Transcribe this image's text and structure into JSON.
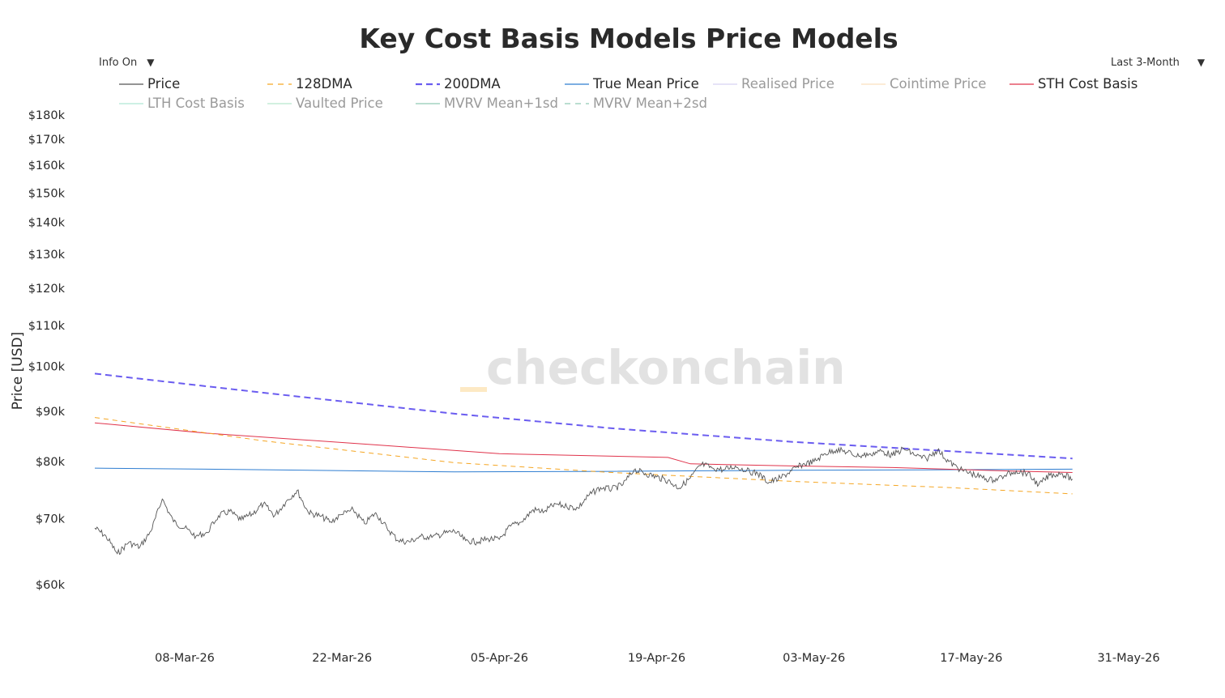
{
  "title": "Key Cost Basis Models Price Models",
  "info_dropdown": {
    "label": "Info On"
  },
  "range_dropdown": {
    "label": "Last 3-Month"
  },
  "watermark": "checkonchain",
  "legend": [
    {
      "name": "Price",
      "color": "#555555",
      "dash": "solid",
      "visible": true
    },
    {
      "name": "128DMA",
      "color": "#f5a623",
      "dash": "dash",
      "visible": true
    },
    {
      "name": "200DMA",
      "color": "#6a5cf0",
      "dash": "dash-thick",
      "visible": true
    },
    {
      "name": "True Mean Price",
      "color": "#2e7dd1",
      "dash": "solid",
      "visible": true
    },
    {
      "name": "Realised Price",
      "color": "#b9aee8",
      "dash": "solid",
      "visible": false
    },
    {
      "name": "Cointime Price",
      "color": "#f7c98a",
      "dash": "solid",
      "visible": false
    },
    {
      "name": "STH Cost Basis",
      "color": "#e0334b",
      "dash": "solid",
      "visible": true
    },
    {
      "name": "LTH Cost Basis",
      "color": "#6fd6b0",
      "dash": "solid",
      "visible": false
    },
    {
      "name": "Vaulted Price",
      "color": "#7fd3a6",
      "dash": "solid",
      "visible": false
    },
    {
      "name": "MVRV Mean+1sd",
      "color": "#3aa07a",
      "dash": "solid",
      "visible": false
    },
    {
      "name": "MVRV Mean+2sd",
      "color": "#3aa07a",
      "dash": "dash",
      "visible": false
    }
  ],
  "chart_data": {
    "type": "line",
    "title": "Key Cost Basis Models Price Models",
    "xlabel": "",
    "ylabel": "Price [USD]",
    "yscale": "log",
    "x_range": [
      "2026-02-26",
      "2026-06-03"
    ],
    "y_range": [
      55000,
      185000
    ],
    "y_ticks": [
      60000,
      70000,
      80000,
      90000,
      100000,
      110000,
      120000,
      130000,
      140000,
      150000,
      160000,
      170000,
      180000
    ],
    "y_tick_labels": [
      "$60k",
      "$70k",
      "$80k",
      "$90k",
      "$100k",
      "$110k",
      "$120k",
      "$130k",
      "$140k",
      "$150k",
      "$160k",
      "$170k",
      "$180k"
    ],
    "x_ticks": [
      "2026-03-08",
      "2026-03-22",
      "2026-04-05",
      "2026-04-19",
      "2026-05-03",
      "2026-05-17",
      "2026-05-31"
    ],
    "x_tick_labels": [
      "08-Mar-26",
      "22-Mar-26",
      "05-Apr-26",
      "19-Apr-26",
      "03-May-26",
      "17-May-26",
      "31-May-26"
    ],
    "grid": false,
    "legend_position": "top",
    "series": [
      {
        "name": "Price",
        "points": [
          [
            "2026-02-28",
            68500
          ],
          [
            "2026-03-01",
            67200
          ],
          [
            "2026-03-02",
            64500
          ],
          [
            "2026-03-03",
            66200
          ],
          [
            "2026-03-04",
            65500
          ],
          [
            "2026-03-05",
            68000
          ],
          [
            "2026-03-06",
            73300
          ],
          [
            "2026-03-07",
            69500
          ],
          [
            "2026-03-08",
            68500
          ],
          [
            "2026-03-09",
            67200
          ],
          [
            "2026-03-10",
            67800
          ],
          [
            "2026-03-11",
            70500
          ],
          [
            "2026-03-12",
            71200
          ],
          [
            "2026-03-13",
            69800
          ],
          [
            "2026-03-14",
            70800
          ],
          [
            "2026-03-15",
            72500
          ],
          [
            "2026-03-16",
            70500
          ],
          [
            "2026-03-17",
            72800
          ],
          [
            "2026-03-18",
            74800
          ],
          [
            "2026-03-19",
            71000
          ],
          [
            "2026-03-20",
            70500
          ],
          [
            "2026-03-21",
            69500
          ],
          [
            "2026-03-22",
            70700
          ],
          [
            "2026-03-23",
            71500
          ],
          [
            "2026-03-24",
            69200
          ],
          [
            "2026-03-25",
            71000
          ],
          [
            "2026-03-26",
            68500
          ],
          [
            "2026-03-27",
            66500
          ],
          [
            "2026-03-28",
            66300
          ],
          [
            "2026-03-29",
            67200
          ],
          [
            "2026-03-30",
            67000
          ],
          [
            "2026-03-31",
            67600
          ],
          [
            "2026-04-01",
            68000
          ],
          [
            "2026-04-02",
            66500
          ],
          [
            "2026-04-03",
            66300
          ],
          [
            "2026-04-04",
            66800
          ],
          [
            "2026-04-05",
            66700
          ],
          [
            "2026-04-06",
            68800
          ],
          [
            "2026-04-07",
            69500
          ],
          [
            "2026-04-08",
            71500
          ],
          [
            "2026-04-09",
            71200
          ],
          [
            "2026-04-10",
            72500
          ],
          [
            "2026-04-11",
            72000
          ],
          [
            "2026-04-12",
            71800
          ],
          [
            "2026-04-13",
            74000
          ],
          [
            "2026-04-14",
            75300
          ],
          [
            "2026-04-15",
            75000
          ],
          [
            "2026-04-16",
            75800
          ],
          [
            "2026-04-17",
            78500
          ],
          [
            "2026-04-18",
            77800
          ],
          [
            "2026-04-19",
            77200
          ],
          [
            "2026-04-20",
            76500
          ],
          [
            "2026-04-21",
            75200
          ],
          [
            "2026-04-22",
            77000
          ],
          [
            "2026-04-23",
            79500
          ],
          [
            "2026-04-24",
            78800
          ],
          [
            "2026-04-25",
            78500
          ],
          [
            "2026-04-26",
            79200
          ],
          [
            "2026-04-27",
            78300
          ],
          [
            "2026-04-28",
            77800
          ],
          [
            "2026-04-29",
            76200
          ],
          [
            "2026-04-30",
            77000
          ],
          [
            "2026-05-01",
            78300
          ],
          [
            "2026-05-02",
            79500
          ],
          [
            "2026-05-03",
            80000
          ],
          [
            "2026-05-04",
            81500
          ],
          [
            "2026-05-05",
            82300
          ],
          [
            "2026-05-06",
            81800
          ],
          [
            "2026-05-07",
            81000
          ],
          [
            "2026-05-08",
            81500
          ],
          [
            "2026-05-09",
            82000
          ],
          [
            "2026-05-10",
            81200
          ],
          [
            "2026-05-11",
            82500
          ],
          [
            "2026-05-12",
            81200
          ],
          [
            "2026-05-13",
            80500
          ],
          [
            "2026-05-14",
            82200
          ],
          [
            "2026-05-15",
            80000
          ],
          [
            "2026-05-16",
            78500
          ],
          [
            "2026-05-17",
            77800
          ],
          [
            "2026-05-18",
            77000
          ],
          [
            "2026-05-19",
            76600
          ],
          [
            "2026-05-20",
            77500
          ],
          [
            "2026-05-21",
            78300
          ],
          [
            "2026-05-22",
            77800
          ],
          [
            "2026-05-23",
            75800
          ],
          [
            "2026-05-24",
            77500
          ],
          [
            "2026-05-25",
            77800
          ],
          [
            "2026-05-26",
            76800
          ]
        ]
      },
      {
        "name": "128DMA",
        "points": [
          [
            "2026-02-28",
            88700
          ],
          [
            "2026-03-15",
            84000
          ],
          [
            "2026-04-01",
            79800
          ],
          [
            "2026-04-15",
            78000
          ],
          [
            "2026-05-01",
            76400
          ],
          [
            "2026-05-15",
            75300
          ],
          [
            "2026-05-26",
            74200
          ]
        ]
      },
      {
        "name": "200DMA",
        "points": [
          [
            "2026-02-28",
            98300
          ],
          [
            "2026-03-15",
            94000
          ],
          [
            "2026-04-01",
            89500
          ],
          [
            "2026-04-15",
            86500
          ],
          [
            "2026-05-01",
            83800
          ],
          [
            "2026-05-15",
            82000
          ],
          [
            "2026-05-26",
            80600
          ]
        ]
      },
      {
        "name": "True Mean Price",
        "points": [
          [
            "2026-02-28",
            78800
          ],
          [
            "2026-03-15",
            78500
          ],
          [
            "2026-04-01",
            78100
          ],
          [
            "2026-04-15",
            78200
          ],
          [
            "2026-05-01",
            78400
          ],
          [
            "2026-05-15",
            78500
          ],
          [
            "2026-05-26",
            78600
          ]
        ]
      },
      {
        "name": "STH Cost Basis",
        "points": [
          [
            "2026-02-28",
            87600
          ],
          [
            "2026-03-10",
            85500
          ],
          [
            "2026-03-25",
            83200
          ],
          [
            "2026-04-05",
            81500
          ],
          [
            "2026-04-20",
            80800
          ],
          [
            "2026-04-22",
            79600
          ],
          [
            "2026-05-01",
            79200
          ],
          [
            "2026-05-10",
            78900
          ],
          [
            "2026-05-20",
            78300
          ],
          [
            "2026-05-26",
            78000
          ]
        ]
      }
    ]
  }
}
